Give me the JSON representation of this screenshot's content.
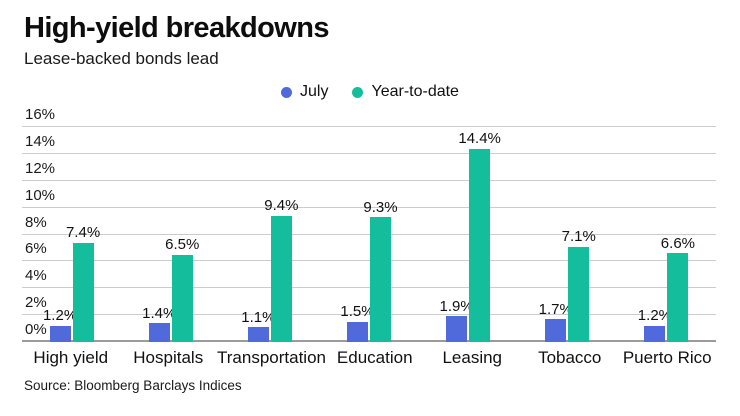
{
  "card": {
    "title": "High-yield breakdowns",
    "subtitle": "Lease-backed bonds lead",
    "source": "Source: Bloomberg Barclays Indices"
  },
  "colors": {
    "july": "#5069db",
    "year_to_date": "#14bd9b",
    "gridline": "#cccccc",
    "baseline": "#9b9b9b"
  },
  "chart_data": {
    "type": "bar",
    "title": "High-yield breakdowns",
    "subtitle": "Lease-backed bonds lead",
    "source": "Source: Bloomberg Barclays Indices",
    "categories": [
      "High yield",
      "Hospitals",
      "Transportation",
      "Education",
      "Leasing",
      "Tobacco",
      "Puerto Rico"
    ],
    "series": [
      {
        "name": "July",
        "color": "#5069db",
        "values": [
          1.2,
          1.4,
          1.1,
          1.5,
          1.9,
          1.7,
          1.2
        ],
        "labels": [
          "1.2%",
          "1.4%",
          "1.1%",
          "1.5%",
          "1.9%",
          "1.7%",
          "1.2%"
        ]
      },
      {
        "name": "Year-to-date",
        "color": "#14bd9b",
        "values": [
          7.4,
          6.5,
          9.4,
          9.3,
          14.4,
          7.1,
          6.6
        ],
        "labels": [
          "7.4%",
          "6.5%",
          "9.4%",
          "9.3%",
          "14.4%",
          "7.1%",
          "6.6%"
        ]
      }
    ],
    "ylim": [
      0,
      16
    ],
    "yticks": [
      0,
      2,
      4,
      6,
      8,
      10,
      12,
      14,
      16
    ],
    "ytick_labels": [
      "0%",
      "2%",
      "4%",
      "6%",
      "8%",
      "10%",
      "12%",
      "14%",
      "16%"
    ],
    "grid": "horizontal",
    "legend_position": "top-center",
    "value_labels": true
  }
}
